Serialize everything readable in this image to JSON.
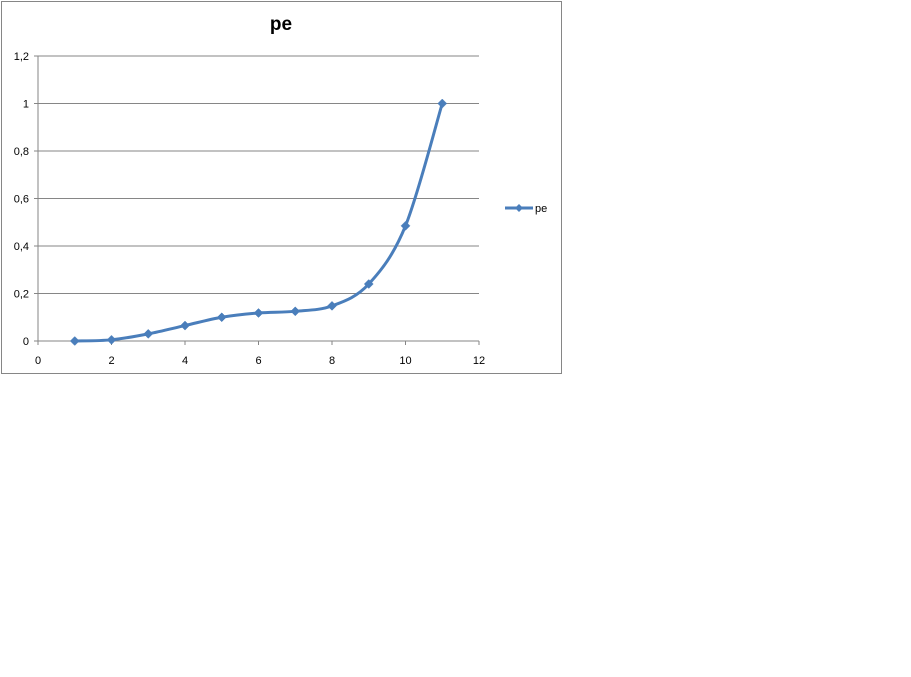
{
  "chart_data": {
    "type": "line",
    "title": "pe",
    "xlabel": "",
    "ylabel": "",
    "xlim": [
      0,
      12
    ],
    "ylim": [
      0,
      1.2
    ],
    "x_ticks": [
      "0",
      "2",
      "4",
      "6",
      "8",
      "10",
      "12"
    ],
    "y_ticks": [
      "0",
      "0,2",
      "0,4",
      "0,6",
      "0,8",
      "1",
      "1,2"
    ],
    "grid": "horizontal",
    "legend_position": "right",
    "smooth": true,
    "series": [
      {
        "name": "pe",
        "color": "#4a7ebb",
        "marker": "diamond",
        "x": [
          1,
          2,
          3,
          4,
          5,
          6,
          7,
          8,
          9,
          10,
          11
        ],
        "y": [
          0,
          0.005,
          0.03,
          0.065,
          0.1,
          0.118,
          0.125,
          0.148,
          0.24,
          0.485,
          1.0
        ]
      }
    ]
  }
}
